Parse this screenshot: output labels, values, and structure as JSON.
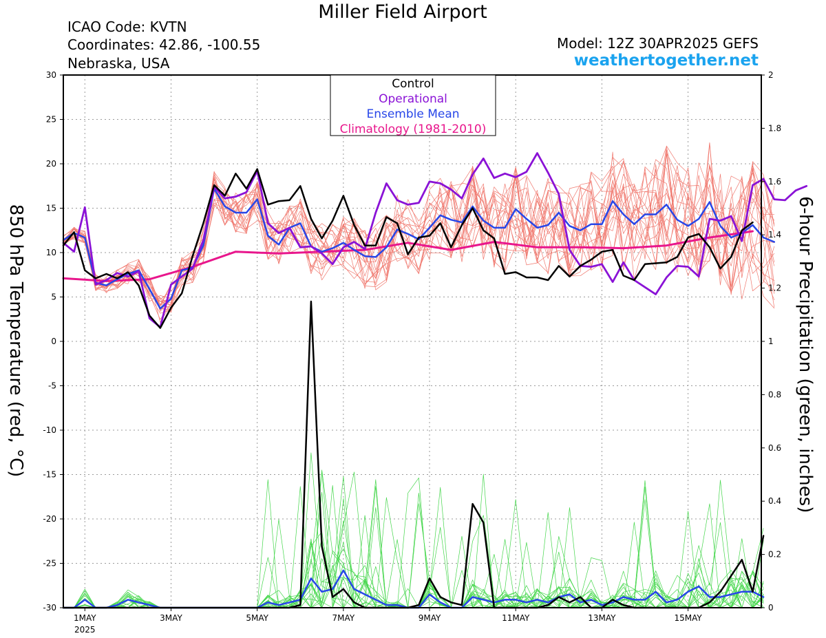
{
  "header": {
    "title": "Miller Field Airport",
    "icao": "ICAO Code: KVTN",
    "coordinates": "Coordinates: 42.86, -100.55",
    "region": "Nebraska, USA",
    "model": "Model: 12Z 30APR2025 GEFS",
    "brand": "weathertogether.net"
  },
  "colors": {
    "members_temp": "#f0786e",
    "members_precip": "#43d64a",
    "control": "#000000",
    "operational": "#8a12d6",
    "ensemble_mean": "#2746e8",
    "climatology": "#e8168c",
    "brand": "#1aa3ef"
  },
  "chart_data": {
    "type": "line",
    "title": "Miller Field Airport",
    "ylabel": "850 hPa Temperature (red, °C)",
    "y2label": "6-hour Precipitation (green, inches)",
    "ylim": [
      -30,
      30
    ],
    "y2lim": [
      0,
      2
    ],
    "yticks": [
      30,
      25,
      20,
      15,
      10,
      5,
      0,
      -5,
      -10,
      -15,
      -20,
      -25,
      -30
    ],
    "y2ticks": [
      "2",
      "1.8",
      "1.6",
      "1.4",
      "1.2",
      "1",
      "0.8",
      "0.6",
      "0.4",
      "0.2",
      "0"
    ],
    "x_note": "x values are days since 00Z 30 Apr 2025 in 6-hour steps starting 12Z 30 Apr",
    "xticks": [
      {
        "day": 1,
        "label": "1MAY",
        "sub": "2025"
      },
      {
        "day": 3,
        "label": "3MAY",
        "sub": ""
      },
      {
        "day": 5,
        "label": "5MAY",
        "sub": ""
      },
      {
        "day": 7,
        "label": "7MAY",
        "sub": ""
      },
      {
        "day": 9,
        "label": "9MAY",
        "sub": ""
      },
      {
        "day": 11,
        "label": "11MAY",
        "sub": ""
      },
      {
        "day": 13,
        "label": "13MAY",
        "sub": ""
      },
      {
        "day": 15,
        "label": "15MAY",
        "sub": ""
      }
    ],
    "grid": true,
    "legend": {
      "placement": "top-center",
      "entries": [
        {
          "label": "Control",
          "color": "#000000"
        },
        {
          "label": "Operational",
          "color": "#8a12d6"
        },
        {
          "label": "Ensemble Mean",
          "color": "#2746e8"
        },
        {
          "label": "Climatology (1981-2010)",
          "color": "#e8168c"
        }
      ]
    },
    "x_start": 0.5,
    "x_step": 0.25,
    "temperature": {
      "control": [
        10.8,
        12.3,
        8.0,
        7.1,
        7.6,
        7.1,
        7.8,
        6.3,
        2.9,
        1.5,
        3.8,
        5.4,
        9.6,
        13.3,
        17.6,
        16.4,
        18.9,
        17.2,
        19.4,
        15.4,
        15.8,
        15.9,
        17.5,
        13.8,
        11.6,
        13.6,
        16.4,
        13.1,
        10.8,
        10.8,
        14.0,
        13.3,
        9.8,
        11.7,
        11.9,
        13.3,
        10.6,
        13.1,
        15.0,
        12.5,
        11.6,
        7.6,
        7.8,
        7.2,
        7.2,
        6.9,
        8.5,
        7.3,
        8.5,
        9.2,
        10.1,
        10.3,
        7.4,
        6.9,
        8.7,
        8.8,
        8.9,
        9.5,
        11.7,
        12.1,
        10.6,
        8.2,
        9.5,
        12.5,
        13.4
      ],
      "operational": [
        11.1,
        10.1,
        15.1,
        6.4,
        6.9,
        7.7,
        7.3,
        7.9,
        2.6,
        1.6,
        6.4,
        7.3,
        8.2,
        11.4,
        17.4,
        16.1,
        16.3,
        16.8,
        19.2,
        13.3,
        12.2,
        12.8,
        10.6,
        10.7,
        9.9,
        8.7,
        10.6,
        11.2,
        10.4,
        14.5,
        17.8,
        15.9,
        15.4,
        15.6,
        18.0,
        17.8,
        17.1,
        16.1,
        18.8,
        20.6,
        18.4,
        18.9,
        18.5,
        19.1,
        21.2,
        19.0,
        16.6,
        10.3,
        8.5,
        8.4,
        8.7,
        6.7,
        8.9,
        6.9,
        6.1,
        5.3,
        7.2,
        8.5,
        8.4,
        7.3,
        13.8,
        13.6,
        14.1,
        11.3,
        17.6,
        18.3,
        16.0,
        15.9,
        17.0,
        17.5
      ],
      "ensemble_mean": [
        11.4,
        12.2,
        11.7,
        6.6,
        6.3,
        7.0,
        7.6,
        8.0,
        5.9,
        3.7,
        4.8,
        8.0,
        8.3,
        10.8,
        17.2,
        15.2,
        14.5,
        14.5,
        16.0,
        11.9,
        10.9,
        12.8,
        13.3,
        10.7,
        10.1,
        10.5,
        11.1,
        10.3,
        9.6,
        9.5,
        10.6,
        12.6,
        12.1,
        11.5,
        12.8,
        14.2,
        13.7,
        13.4,
        15.2,
        13.6,
        12.8,
        12.8,
        14.9,
        13.8,
        12.8,
        13.1,
        14.5,
        13.0,
        12.5,
        13.2,
        13.2,
        15.8,
        14.3,
        13.2,
        14.3,
        14.3,
        15.4,
        13.7,
        13.0,
        13.8,
        15.7,
        13.0,
        11.7,
        12.2,
        13.1,
        11.7,
        11.2
      ],
      "climatology": [
        [
          0.5,
          7.1
        ],
        [
          1.5,
          6.8
        ],
        [
          2.5,
          7.0
        ],
        [
          3.5,
          8.4
        ],
        [
          4.5,
          10.1
        ],
        [
          5.5,
          9.9
        ],
        [
          6.5,
          10.1
        ],
        [
          7.5,
          10.3
        ],
        [
          8.5,
          11.1
        ],
        [
          9.5,
          10.3
        ],
        [
          10.5,
          11.2
        ],
        [
          11.5,
          10.6
        ],
        [
          12.5,
          10.6
        ],
        [
          13.5,
          10.5
        ],
        [
          14.5,
          10.8
        ],
        [
          15.5,
          11.7
        ],
        [
          16.5,
          12.4
        ]
      ]
    },
    "precipitation": {
      "control": [
        0,
        0,
        0,
        0,
        0,
        0,
        0,
        0,
        0,
        0,
        0,
        0,
        0,
        0,
        0,
        0,
        0,
        0,
        0,
        0,
        0,
        0,
        0.01,
        1.15,
        0.23,
        0.04,
        0.07,
        0.02,
        0,
        0,
        0,
        0,
        0,
        0.01,
        0.11,
        0.04,
        0.02,
        0.01,
        0.39,
        0.32,
        0,
        0,
        0,
        0,
        0,
        0.01,
        0.04,
        0.02,
        0.04,
        0,
        0,
        0.03,
        0.01,
        0,
        0,
        0,
        0,
        0,
        0,
        0,
        0.02,
        0.06,
        0.12,
        0.18,
        0.06,
        0.27
      ],
      "ensemble_mean": [
        0,
        0,
        0.03,
        0,
        0,
        0.01,
        0.03,
        0.02,
        0.01,
        0,
        0,
        0,
        0,
        0,
        0,
        0,
        0,
        0,
        0,
        0.02,
        0.01,
        0.02,
        0.03,
        0.11,
        0.06,
        0.07,
        0.14,
        0.07,
        0.05,
        0.03,
        0.01,
        0.01,
        0,
        0,
        0.05,
        0.02,
        0,
        0,
        0.04,
        0.03,
        0.02,
        0.03,
        0.03,
        0.02,
        0.03,
        0.02,
        0.04,
        0.05,
        0.02,
        0.03,
        0.01,
        0.02,
        0.04,
        0.03,
        0.03,
        0.06,
        0.02,
        0.03,
        0.06,
        0.08,
        0.04,
        0.04,
        0.05,
        0.06,
        0.06,
        0.04
      ]
    }
  }
}
